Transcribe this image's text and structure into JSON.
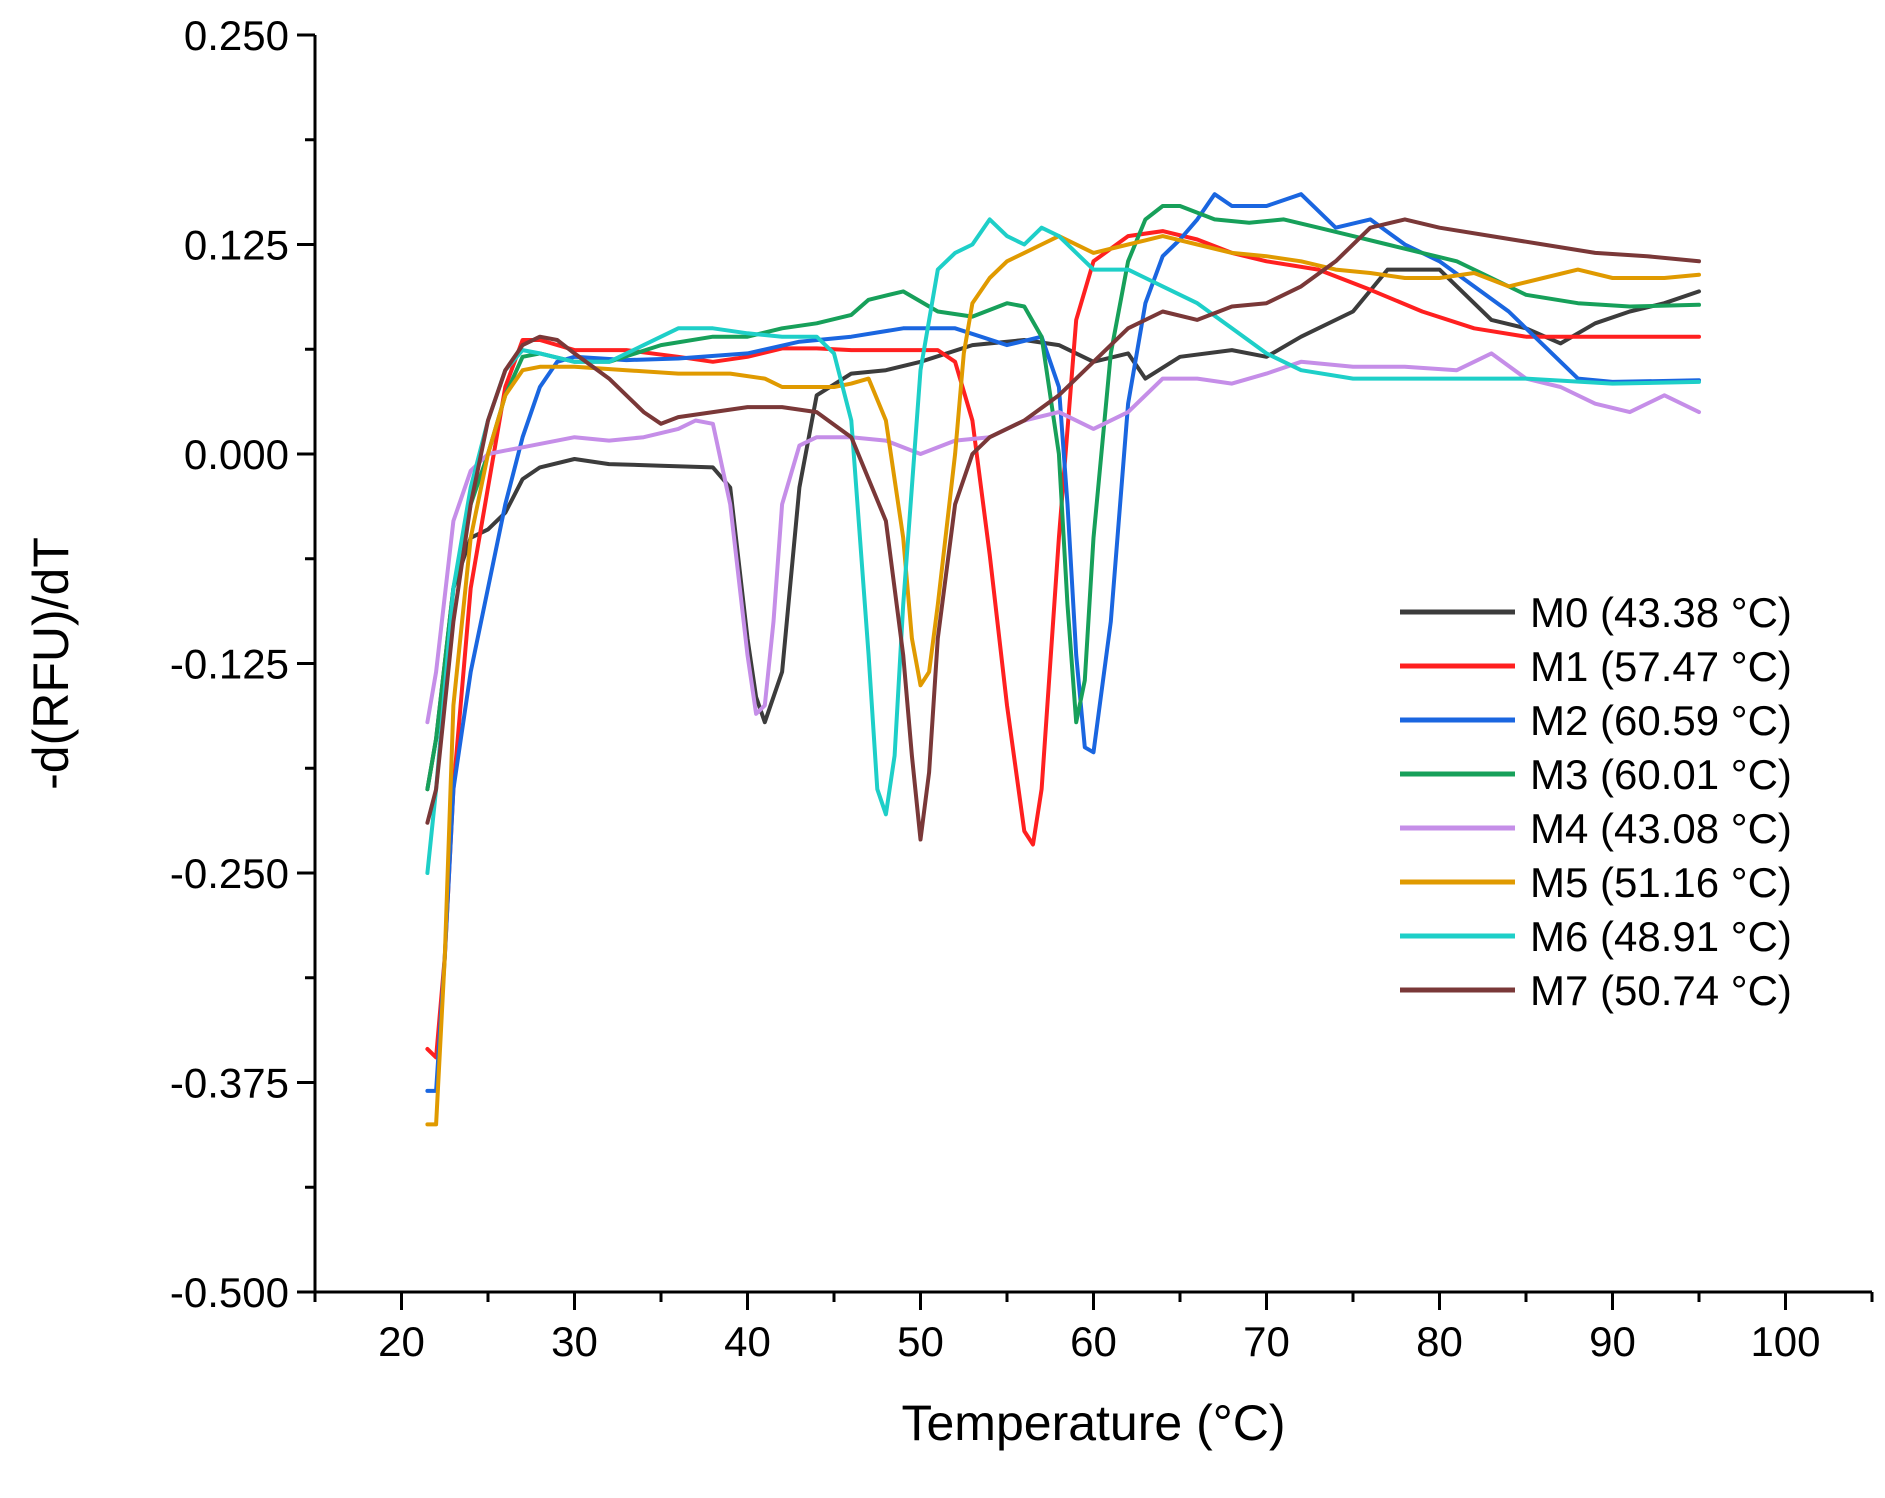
{
  "chart_data": {
    "type": "line",
    "title": "",
    "xlabel": "Temperature (°C)",
    "ylabel": "-d(RFU)/dT",
    "xlim": [
      15,
      105
    ],
    "ylim": [
      -0.5,
      0.25
    ],
    "x_ticks": [
      20,
      30,
      40,
      50,
      60,
      70,
      80,
      90,
      100
    ],
    "x_tick_labels": [
      "20",
      "30",
      "40",
      "50",
      "60",
      "70",
      "80",
      "90",
      "100"
    ],
    "y_ticks": [
      0.25,
      0.125,
      0,
      -0.125,
      -0.25,
      -0.375,
      -0.5
    ],
    "y_tick_labels": [
      "0.250",
      "0.125",
      "0.000",
      "-0.125",
      "-0.250",
      "-0.375",
      "-0.500"
    ],
    "legend_position": "right",
    "series": [
      {
        "name": "M0 (43.38 °C)",
        "color": "#3c3c3c",
        "x": [
          21.5,
          22,
          23,
          24,
          25,
          26,
          27,
          28,
          30,
          32,
          35,
          38,
          39,
          40,
          40.5,
          41,
          42,
          43,
          44,
          46,
          48,
          50,
          53,
          56,
          58,
          60,
          62,
          63,
          65,
          68,
          70,
          72,
          75,
          77,
          80,
          83,
          85,
          87,
          89,
          91,
          93,
          95
        ],
        "y": [
          -0.2,
          -0.17,
          -0.08,
          -0.05,
          -0.045,
          -0.035,
          -0.015,
          -0.008,
          -0.003,
          -0.006,
          -0.007,
          -0.008,
          -0.02,
          -0.11,
          -0.145,
          -0.16,
          -0.13,
          -0.02,
          0.035,
          0.048,
          0.05,
          0.055,
          0.065,
          0.068,
          0.065,
          0.055,
          0.06,
          0.045,
          0.058,
          0.062,
          0.058,
          0.07,
          0.085,
          0.11,
          0.11,
          0.08,
          0.075,
          0.066,
          0.078,
          0.085,
          0.09,
          0.097
        ]
      },
      {
        "name": "M1 (57.47 °C)",
        "color": "#ff2020",
        "x": [
          21.5,
          22,
          22.5,
          23,
          24,
          25,
          26,
          27,
          28,
          30,
          33,
          36,
          38,
          40,
          42,
          44,
          46,
          48,
          50,
          51,
          52,
          53,
          54,
          55,
          56,
          56.5,
          57,
          58,
          59,
          60,
          62,
          64,
          66,
          68,
          70,
          73,
          76,
          79,
          82,
          85,
          88,
          91,
          95
        ],
        "y": [
          -0.355,
          -0.36,
          -0.3,
          -0.2,
          -0.08,
          -0.02,
          0.04,
          0.068,
          0.068,
          0.062,
          0.062,
          0.058,
          0.055,
          0.058,
          0.063,
          0.063,
          0.062,
          0.062,
          0.062,
          0.062,
          0.055,
          0.02,
          -0.06,
          -0.15,
          -0.225,
          -0.233,
          -0.2,
          -0.05,
          0.08,
          0.115,
          0.13,
          0.133,
          0.128,
          0.12,
          0.115,
          0.11,
          0.098,
          0.085,
          0.075,
          0.07,
          0.07,
          0.07,
          0.07
        ]
      },
      {
        "name": "M2 (60.59 °C)",
        "color": "#1a66e0",
        "x": [
          21.5,
          22,
          22.5,
          23,
          24,
          25,
          26,
          27,
          28,
          29,
          30,
          33,
          36,
          40,
          43,
          46,
          49,
          52,
          55,
          57,
          58,
          58.5,
          59,
          59.5,
          60,
          61,
          62,
          63,
          64,
          65,
          66,
          67,
          68,
          70,
          72,
          74,
          76,
          78,
          80,
          82,
          84,
          86,
          88,
          90,
          95
        ],
        "y": [
          -0.38,
          -0.38,
          -0.3,
          -0.2,
          -0.13,
          -0.08,
          -0.03,
          0.01,
          0.04,
          0.055,
          0.058,
          0.056,
          0.057,
          0.06,
          0.067,
          0.07,
          0.075,
          0.075,
          0.065,
          0.07,
          0.04,
          -0.03,
          -0.12,
          -0.175,
          -0.178,
          -0.1,
          0.03,
          0.09,
          0.118,
          0.128,
          0.14,
          0.155,
          0.148,
          0.148,
          0.155,
          0.135,
          0.14,
          0.125,
          0.115,
          0.1,
          0.085,
          0.065,
          0.045,
          0.043,
          0.044
        ]
      },
      {
        "name": "M3 (60.01 °C)",
        "color": "#17a05a",
        "x": [
          21.5,
          22,
          23,
          24,
          25,
          26,
          27,
          28,
          30,
          32,
          35,
          38,
          40,
          42,
          44,
          46,
          47,
          49,
          51,
          53,
          55,
          56,
          57,
          58,
          58.5,
          59,
          59.5,
          60,
          61,
          62,
          63,
          64,
          65,
          67,
          69,
          71,
          73,
          75,
          77,
          79,
          81,
          83,
          85,
          88,
          91,
          95
        ],
        "y": [
          -0.2,
          -0.17,
          -0.08,
          -0.03,
          0.0,
          0.035,
          0.058,
          0.06,
          0.055,
          0.055,
          0.065,
          0.07,
          0.07,
          0.075,
          0.078,
          0.083,
          0.092,
          0.097,
          0.085,
          0.082,
          0.09,
          0.088,
          0.07,
          0.0,
          -0.09,
          -0.16,
          -0.135,
          -0.05,
          0.06,
          0.115,
          0.14,
          0.148,
          0.148,
          0.14,
          0.138,
          0.14,
          0.135,
          0.13,
          0.125,
          0.12,
          0.115,
          0.105,
          0.095,
          0.09,
          0.088,
          0.089
        ]
      },
      {
        "name": "M4 (43.08 °C)",
        "color": "#c58ee8",
        "x": [
          21.5,
          22,
          23,
          24,
          25,
          26,
          27,
          28,
          30,
          32,
          34,
          36,
          37,
          38,
          39,
          40,
          40.5,
          41,
          41.5,
          42,
          43,
          44,
          46,
          48,
          50,
          52,
          54,
          56,
          58,
          60,
          62,
          64,
          66,
          68,
          70,
          72,
          75,
          78,
          81,
          83,
          85,
          87,
          89,
          91,
          93,
          95
        ],
        "y": [
          -0.16,
          -0.13,
          -0.04,
          -0.01,
          0.0,
          0.002,
          0.004,
          0.006,
          0.01,
          0.008,
          0.01,
          0.015,
          0.02,
          0.018,
          -0.03,
          -0.12,
          -0.155,
          -0.15,
          -0.1,
          -0.03,
          0.005,
          0.01,
          0.01,
          0.008,
          0.0,
          0.008,
          0.01,
          0.02,
          0.025,
          0.015,
          0.025,
          0.045,
          0.045,
          0.042,
          0.048,
          0.055,
          0.052,
          0.052,
          0.05,
          0.06,
          0.045,
          0.04,
          0.03,
          0.025,
          0.035,
          0.025
        ]
      },
      {
        "name": "M5 (51.16 °C)",
        "color": "#e09a00",
        "x": [
          21.5,
          22,
          22.5,
          23,
          24,
          25,
          26,
          27,
          28,
          30,
          33,
          36,
          39,
          41,
          42,
          43,
          45,
          46,
          47,
          48,
          49,
          49.5,
          50,
          50.5,
          51,
          52,
          52.5,
          53,
          54,
          55,
          56,
          57,
          58,
          60,
          62,
          64,
          66,
          68,
          70,
          72,
          74,
          76,
          78,
          80,
          82,
          84,
          86,
          88,
          90,
          93,
          95
        ],
        "y": [
          -0.4,
          -0.4,
          -0.3,
          -0.15,
          -0.05,
          0.0,
          0.035,
          0.05,
          0.052,
          0.052,
          0.05,
          0.048,
          0.048,
          0.045,
          0.04,
          0.04,
          0.04,
          0.042,
          0.045,
          0.02,
          -0.05,
          -0.11,
          -0.138,
          -0.13,
          -0.09,
          0.0,
          0.06,
          0.09,
          0.105,
          0.115,
          0.12,
          0.125,
          0.13,
          0.12,
          0.125,
          0.13,
          0.125,
          0.12,
          0.118,
          0.115,
          0.11,
          0.108,
          0.105,
          0.105,
          0.108,
          0.1,
          0.105,
          0.11,
          0.105,
          0.105,
          0.107
        ]
      },
      {
        "name": "M6 (48.91 °C)",
        "color": "#1ecfc8",
        "x": [
          21.5,
          22,
          23,
          24,
          25,
          26,
          27,
          28,
          30,
          32,
          34,
          36,
          38,
          40,
          42,
          44,
          45,
          46,
          47,
          47.5,
          48,
          48.5,
          49,
          50,
          51,
          52,
          53,
          54,
          55,
          56,
          57,
          58,
          60,
          62,
          64,
          66,
          68,
          70,
          72,
          75,
          80,
          85,
          90,
          95
        ],
        "y": [
          -0.25,
          -0.2,
          -0.08,
          -0.02,
          0.02,
          0.05,
          0.062,
          0.06,
          0.055,
          0.055,
          0.065,
          0.075,
          0.075,
          0.072,
          0.07,
          0.07,
          0.06,
          0.02,
          -0.12,
          -0.2,
          -0.215,
          -0.18,
          -0.09,
          0.05,
          0.11,
          0.12,
          0.125,
          0.14,
          0.13,
          0.125,
          0.135,
          0.13,
          0.11,
          0.11,
          0.1,
          0.09,
          0.075,
          0.06,
          0.05,
          0.045,
          0.045,
          0.045,
          0.042,
          0.043
        ]
      },
      {
        "name": "M7 (50.74 °C)",
        "color": "#7a3838",
        "x": [
          21.5,
          22,
          23,
          24,
          25,
          26,
          27,
          28,
          29,
          30,
          32,
          34,
          35,
          36,
          38,
          40,
          42,
          44,
          46,
          48,
          49,
          49.5,
          50,
          50.5,
          51,
          52,
          53,
          54,
          56,
          58,
          60,
          62,
          64,
          66,
          68,
          70,
          72,
          74,
          76,
          78,
          80,
          83,
          86,
          89,
          92,
          95
        ],
        "y": [
          -0.22,
          -0.2,
          -0.1,
          -0.03,
          0.02,
          0.05,
          0.065,
          0.07,
          0.068,
          0.06,
          0.045,
          0.025,
          0.018,
          0.022,
          0.025,
          0.028,
          0.028,
          0.025,
          0.01,
          -0.04,
          -0.12,
          -0.18,
          -0.23,
          -0.19,
          -0.11,
          -0.03,
          0.0,
          0.01,
          0.02,
          0.035,
          0.055,
          0.075,
          0.085,
          0.08,
          0.088,
          0.09,
          0.1,
          0.115,
          0.135,
          0.14,
          0.135,
          0.13,
          0.125,
          0.12,
          0.118,
          0.115
        ]
      }
    ]
  }
}
